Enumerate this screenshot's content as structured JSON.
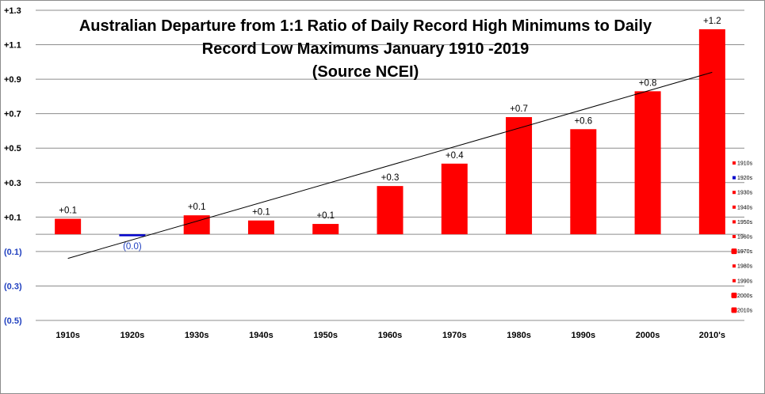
{
  "chart_data": {
    "type": "bar",
    "title_lines": [
      "Australian Departure from 1:1 Ratio of Daily Record High Minimums to Daily",
      "Record Low Maximums January 1910 -2019",
      "(Source NCEI)"
    ],
    "categories": [
      "1910s",
      "1920s",
      "1930s",
      "1940s",
      "1950s",
      "1960s",
      "1970s",
      "1980s",
      "1990s",
      "2000s",
      "2010's"
    ],
    "values": [
      0.09,
      -0.01,
      0.11,
      0.08,
      0.06,
      0.28,
      0.41,
      0.68,
      0.61,
      0.83,
      1.19
    ],
    "data_labels": [
      "+0.1",
      "(0.0)",
      "+0.1",
      "+0.1",
      "+0.1",
      "+0.3",
      "+0.4",
      "+0.7",
      "+0.6",
      "+0.8",
      "+1.2"
    ],
    "y_ticks": [
      1.3,
      1.1,
      0.9,
      0.7,
      0.5,
      0.3,
      0.1,
      -0.1,
      -0.3,
      -0.5
    ],
    "y_tick_labels": [
      "+1.3",
      "+1.1",
      "+0.9",
      "+0.7",
      "+0.5",
      "+0.3",
      "+0.1",
      "(0.1)",
      "(0.3)",
      "(0.5)"
    ],
    "ylim": [
      -0.5,
      1.3
    ],
    "grid": true,
    "trendline": {
      "type": "linear",
      "start": -0.14,
      "end": 0.94
    },
    "legend": {
      "placement": "right",
      "entries": [
        "1910s",
        "1920s",
        "1930s",
        "1940s",
        "1950s",
        "1960s",
        "1970s",
        "1980s",
        "1990s",
        "2000s",
        "2010s"
      ]
    },
    "colors": {
      "positive": "#ff0000",
      "negative": "#0000cc",
      "negative_label": "#1f3fbf",
      "tick_positive": "#000000",
      "tick_negative": "#1f3fbf",
      "gridline": "#8c8c8c",
      "trendline": "#000000"
    }
  }
}
